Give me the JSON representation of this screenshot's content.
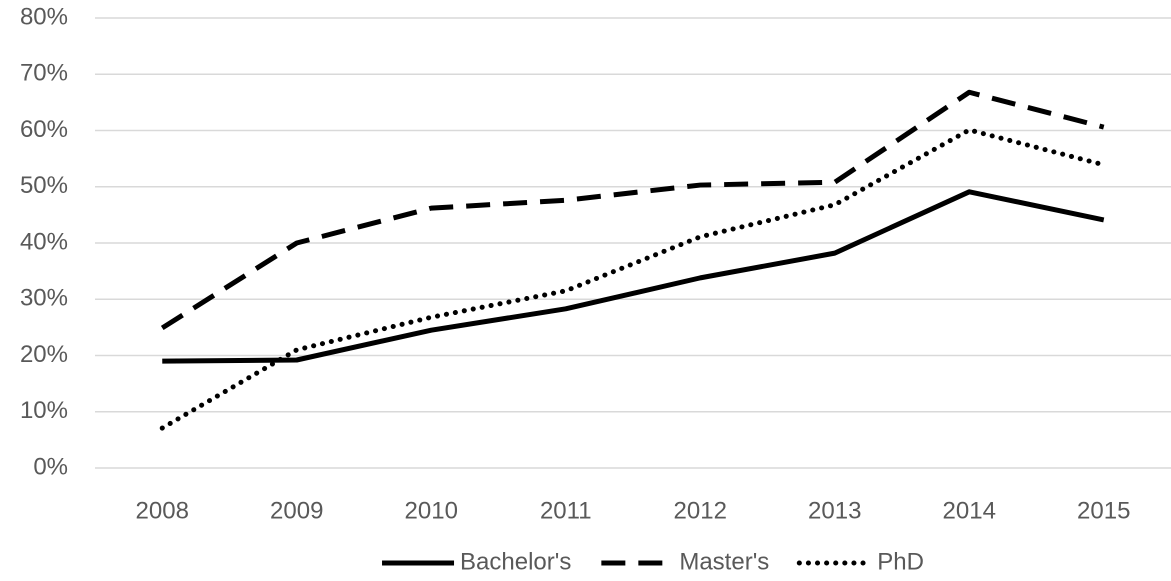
{
  "chart_data": {
    "type": "line",
    "categories": [
      "2008",
      "2009",
      "2010",
      "2011",
      "2012",
      "2013",
      "2014",
      "2015"
    ],
    "series": [
      {
        "name": "Bachelor's",
        "color": "#000000",
        "dash": "solid",
        "values": [
          19,
          19.2,
          24.5,
          28.3,
          33.8,
          38.2,
          49.1,
          44.1
        ]
      },
      {
        "name": "Master's",
        "color": "#000000",
        "dash": "dashed",
        "values": [
          24.9,
          40,
          46.2,
          47.6,
          50.3,
          50.8,
          66.8,
          60.6
        ]
      },
      {
        "name": "PhD",
        "color": "#000000",
        "dash": "dotted",
        "values": [
          7.1,
          21,
          26.8,
          31.5,
          41.1,
          46.8,
          60.1,
          53.9
        ]
      }
    ],
    "ylim": [
      0,
      80
    ],
    "yticks": [
      {
        "value": 0,
        "label": "0%"
      },
      {
        "value": 10,
        "label": "10%"
      },
      {
        "value": 20,
        "label": "20%"
      },
      {
        "value": 30,
        "label": "30%"
      },
      {
        "value": 40,
        "label": "40%"
      },
      {
        "value": 50,
        "label": "50%"
      },
      {
        "value": 60,
        "label": "60%"
      },
      {
        "value": 70,
        "label": "70%"
      },
      {
        "value": 80,
        "label": "80%"
      }
    ],
    "grid": true,
    "legend": "bottom"
  }
}
